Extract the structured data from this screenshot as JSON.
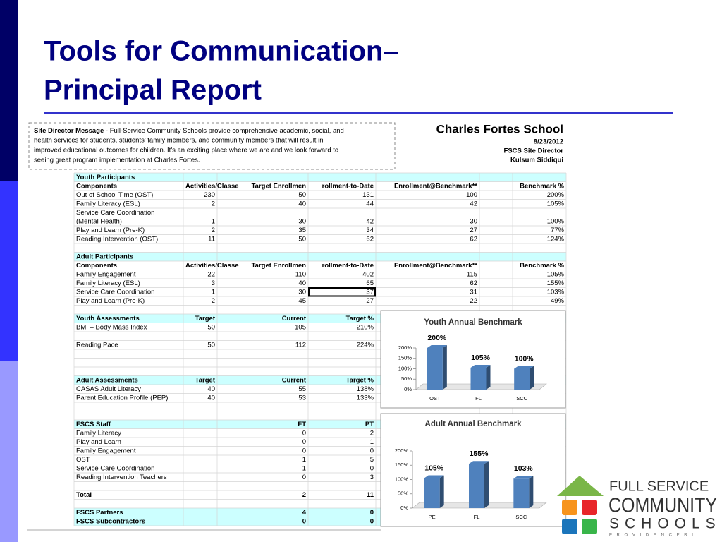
{
  "title": [
    "Tools for Communication–",
    "Principal Report"
  ],
  "message": {
    "label": "Site Director Message - ",
    "lines": [
      "Full-Service Community Schools provide comprehensive academic, social, and",
      "health services for students, students' family members, and community members that will result in",
      "improved educational outcomes for children.  It's an exciting place where we are and we look forward to",
      "seeing great program implementation at Charles Fortes."
    ]
  },
  "school": {
    "name": "Charles Fortes School",
    "date": "8/23/2012",
    "role": "FSCS Site Director",
    "person": "Kulsum Siddiqui"
  },
  "sheet": {
    "youth_participants": {
      "title": "Youth Participants",
      "headers": [
        "Components",
        "Activities/Classe",
        "Target Enrollmen",
        "rollment-to-Date",
        "Enrollment@Benchmark**",
        "Benchmark %"
      ],
      "rows": [
        [
          "Out of School Time (OST)",
          230,
          50,
          131,
          100,
          "200%"
        ],
        [
          "Family Literacy (ESL)",
          2,
          40,
          44,
          42,
          "105%"
        ],
        [
          "Service Care Coordination"
        ],
        [
          "(Mental Health)",
          1,
          30,
          42,
          30,
          "100%"
        ],
        [
          "Play and Learn (Pre-K)",
          2,
          35,
          34,
          27,
          "77%"
        ],
        [
          "Reading Intervention (OST)",
          11,
          50,
          62,
          62,
          "124%"
        ]
      ]
    },
    "adult_participants": {
      "title": "Adult Participants",
      "headers": [
        "Components",
        "Activities/Classe",
        "Target Enrollmen",
        "rollment-to-Date",
        "Enrollment@Benchmark**",
        "Benchmark %"
      ],
      "rows": [
        [
          "Family Engagement",
          22,
          110,
          402,
          115,
          "105%"
        ],
        [
          "Family Literacy (ESL)",
          3,
          40,
          65,
          62,
          "155%"
        ],
        [
          "Service Care Coordination",
          1,
          30,
          37,
          31,
          "103%"
        ],
        [
          "Play and Learn (Pre-K)",
          2,
          45,
          27,
          22,
          "49%"
        ]
      ]
    },
    "youth_assessments": {
      "headers": [
        "Youth Assessments",
        "Target",
        "Current",
        "Target %"
      ],
      "rows": [
        [
          "BMI – Body Mass Index",
          50,
          105,
          "210%"
        ],
        [
          "Reading Pace",
          50,
          112,
          "224%"
        ]
      ]
    },
    "adult_assessments": {
      "headers": [
        "Adult Assessments",
        "Target",
        "Current",
        "Target %"
      ],
      "rows": [
        [
          "CASAS Adult Literacy",
          40,
          55,
          "138%"
        ],
        [
          "Parent Education Profile (PEP)",
          40,
          53,
          "133%"
        ]
      ]
    },
    "staff": {
      "headers": [
        "FSCS Staff",
        "FT",
        "PT"
      ],
      "rows": [
        [
          "Family Literacy",
          0,
          2
        ],
        [
          "Play and Learn",
          0,
          1
        ],
        [
          "Family Engagement",
          0,
          0
        ],
        [
          "OST",
          1,
          5
        ],
        [
          "Service Care Coordination",
          1,
          0
        ],
        [
          "Reading Intervention Teachers",
          0,
          3
        ]
      ]
    },
    "totals": {
      "rows": [
        [
          "Total",
          2,
          11
        ],
        [
          "FSCS Partners",
          4,
          0
        ],
        [
          "FSCS Subcontractors",
          0,
          0
        ]
      ]
    }
  },
  "chart_data": [
    {
      "type": "bar",
      "title": "Youth Annual Benchmark",
      "categories": [
        "OST",
        "FL",
        "SCC"
      ],
      "values": [
        200,
        105,
        100
      ],
      "value_labels": [
        "200%",
        "105%",
        "100%"
      ],
      "color": "#4f81bd",
      "ylim": [
        0,
        200
      ],
      "yticks": [
        {
          "value": 0,
          "label": "0%"
        },
        {
          "value": 50,
          "label": "50%"
        },
        {
          "value": 100,
          "label": "100%"
        },
        {
          "value": 150,
          "label": "150%"
        },
        {
          "value": 200,
          "label": "200%"
        }
      ]
    },
    {
      "type": "bar",
      "title": "Adult Annual Benchmark",
      "categories": [
        "PE",
        "FL",
        "SCC"
      ],
      "values": [
        105,
        155,
        103
      ],
      "value_labels": [
        "105%",
        "155%",
        "103%"
      ],
      "color": "#4f81bd",
      "ylim": [
        0,
        200
      ],
      "yticks": [
        {
          "value": 0,
          "label": "0%"
        },
        {
          "value": 50,
          "label": "50%"
        },
        {
          "value": 100,
          "label": "100%"
        },
        {
          "value": 150,
          "label": "150%"
        },
        {
          "value": 200,
          "label": "200%"
        }
      ]
    }
  ],
  "logo": {
    "line1": "FULL SERVICE",
    "line2": "COMMUNITY",
    "line3": "SCHOOLS",
    "line4": "P R O V I D E N C E   R I"
  }
}
